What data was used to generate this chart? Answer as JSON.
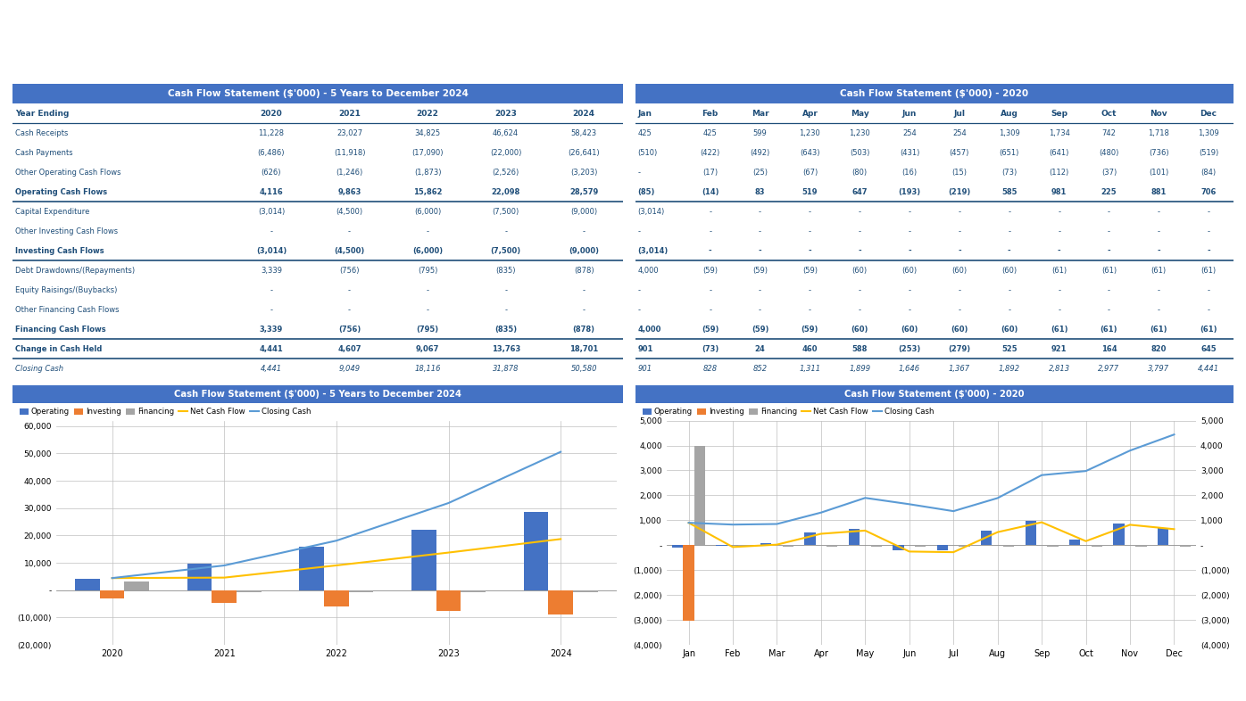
{
  "bg_color": "#ffffff",
  "header_color": "#4472C4",
  "header_text_color": "#ffffff",
  "label_color": "#1F4E79",
  "value_color": "#1F4E79",
  "border_color": "#1F4E79",
  "table1_title": "Cash Flow Statement ($'000) - 5 Years to December 2024",
  "table1_headers": [
    "Year Ending",
    "2020",
    "2021",
    "2022",
    "2023",
    "2024"
  ],
  "table1_rows": [
    [
      "Cash Receipts",
      "11,228",
      "23,027",
      "34,825",
      "46,624",
      "58,423"
    ],
    [
      "Cash Payments",
      "(6,486)",
      "(11,918)",
      "(17,090)",
      "(22,000)",
      "(26,641)"
    ],
    [
      "Other Operating Cash Flows",
      "(626)",
      "(1,246)",
      "(1,873)",
      "(2,526)",
      "(3,203)"
    ],
    [
      "Operating Cash Flows",
      "4,116",
      "9,863",
      "15,862",
      "22,098",
      "28,579"
    ],
    [
      "Capital Expenditure",
      "(3,014)",
      "(4,500)",
      "(6,000)",
      "(7,500)",
      "(9,000)"
    ],
    [
      "Other Investing Cash Flows",
      "-",
      "-",
      "-",
      "-",
      "-"
    ],
    [
      "Investing Cash Flows",
      "(3,014)",
      "(4,500)",
      "(6,000)",
      "(7,500)",
      "(9,000)"
    ],
    [
      "Debt Drawdowns/(Repayments)",
      "3,339",
      "(756)",
      "(795)",
      "(835)",
      "(878)"
    ],
    [
      "Equity Raisings/(Buybacks)",
      "-",
      "-",
      "-",
      "-",
      "-"
    ],
    [
      "Other Financing Cash Flows",
      "-",
      "-",
      "-",
      "-",
      "-"
    ],
    [
      "Financing Cash Flows",
      "3,339",
      "(756)",
      "(795)",
      "(835)",
      "(878)"
    ],
    [
      "Change in Cash Held",
      "4,441",
      "4,607",
      "9,067",
      "13,763",
      "18,701"
    ],
    [
      "Closing Cash",
      "4,441",
      "9,049",
      "18,116",
      "31,878",
      "50,580"
    ]
  ],
  "table1_bold_rows": [
    3,
    6,
    10,
    11
  ],
  "table1_italic_rows": [
    12
  ],
  "table2_title": "Cash Flow Statement ($'000) - 2020",
  "table2_headers": [
    "Jan",
    "Feb",
    "Mar",
    "Apr",
    "May",
    "Jun",
    "Jul",
    "Aug",
    "Sep",
    "Oct",
    "Nov",
    "Dec"
  ],
  "table2_rows": [
    [
      "425",
      "425",
      "599",
      "1,230",
      "1,230",
      "254",
      "254",
      "1,309",
      "1,734",
      "742",
      "1,718",
      "1,309"
    ],
    [
      "(510)",
      "(422)",
      "(492)",
      "(643)",
      "(503)",
      "(431)",
      "(457)",
      "(651)",
      "(641)",
      "(480)",
      "(736)",
      "(519)"
    ],
    [
      "-",
      "(17)",
      "(25)",
      "(67)",
      "(80)",
      "(16)",
      "(15)",
      "(73)",
      "(112)",
      "(37)",
      "(101)",
      "(84)"
    ],
    [
      "(85)",
      "(14)",
      "83",
      "519",
      "647",
      "(193)",
      "(219)",
      "585",
      "981",
      "225",
      "881",
      "706"
    ],
    [
      "(3,014)",
      "-",
      "-",
      "-",
      "-",
      "-",
      "-",
      "-",
      "-",
      "-",
      "-",
      "-"
    ],
    [
      "-",
      "-",
      "-",
      "-",
      "-",
      "-",
      "-",
      "-",
      "-",
      "-",
      "-",
      "-"
    ],
    [
      "(3,014)",
      "-",
      "-",
      "-",
      "-",
      "-",
      "-",
      "-",
      "-",
      "-",
      "-",
      "-"
    ],
    [
      "4,000",
      "(59)",
      "(59)",
      "(59)",
      "(60)",
      "(60)",
      "(60)",
      "(60)",
      "(61)",
      "(61)",
      "(61)",
      "(61)"
    ],
    [
      "-",
      "-",
      "-",
      "-",
      "-",
      "-",
      "-",
      "-",
      "-",
      "-",
      "-",
      "-"
    ],
    [
      "-",
      "-",
      "-",
      "-",
      "-",
      "-",
      "-",
      "-",
      "-",
      "-",
      "-",
      "-"
    ],
    [
      "4,000",
      "(59)",
      "(59)",
      "(59)",
      "(60)",
      "(60)",
      "(60)",
      "(60)",
      "(61)",
      "(61)",
      "(61)",
      "(61)"
    ],
    [
      "901",
      "(73)",
      "24",
      "460",
      "588",
      "(253)",
      "(279)",
      "525",
      "921",
      "164",
      "820",
      "645"
    ],
    [
      "901",
      "828",
      "852",
      "1,311",
      "1,899",
      "1,646",
      "1,367",
      "1,892",
      "2,813",
      "2,977",
      "3,797",
      "4,441"
    ]
  ],
  "table2_bold_rows": [
    3,
    6,
    10,
    11
  ],
  "table2_italic_rows": [
    12
  ],
  "chart1_title": "Cash Flow Statement ($'000) - 5 Years to December 2024",
  "chart1_years": [
    "2020",
    "2021",
    "2022",
    "2023",
    "2024"
  ],
  "chart1_operating": [
    4116,
    9863,
    15862,
    22098,
    28579
  ],
  "chart1_investing": [
    -3014,
    -4500,
    -6000,
    -7500,
    -9000
  ],
  "chart1_financing": [
    3339,
    -756,
    -795,
    -835,
    -878
  ],
  "chart1_net_cash": [
    4441,
    4607,
    9067,
    13763,
    18701
  ],
  "chart1_closing": [
    4441,
    9049,
    18116,
    31878,
    50580
  ],
  "chart2_title": "Cash Flow Statement ($'000) - 2020",
  "chart2_months": [
    "Jan",
    "Feb",
    "Mar",
    "Apr",
    "May",
    "Jun",
    "Jul",
    "Aug",
    "Sep",
    "Oct",
    "Nov",
    "Dec"
  ],
  "chart2_operating": [
    -85,
    -14,
    83,
    519,
    647,
    -193,
    -219,
    585,
    981,
    225,
    881,
    706
  ],
  "chart2_investing": [
    -3014,
    0,
    0,
    0,
    0,
    0,
    0,
    0,
    0,
    0,
    0,
    0
  ],
  "chart2_financing": [
    4000,
    -59,
    -59,
    -59,
    -60,
    -60,
    -60,
    -60,
    -61,
    -61,
    -61,
    -61
  ],
  "chart2_net_cash": [
    901,
    -73,
    24,
    460,
    588,
    -253,
    -279,
    525,
    921,
    164,
    820,
    645
  ],
  "chart2_closing": [
    901,
    828,
    852,
    1311,
    1899,
    1646,
    1367,
    1892,
    2813,
    2977,
    3797,
    4441
  ],
  "bar_operating_color": "#4472C4",
  "bar_investing_color": "#ED7D31",
  "bar_financing_color": "#A5A5A5",
  "line_netcash_color": "#FFC000",
  "line_closing_color": "#5B9BD5"
}
